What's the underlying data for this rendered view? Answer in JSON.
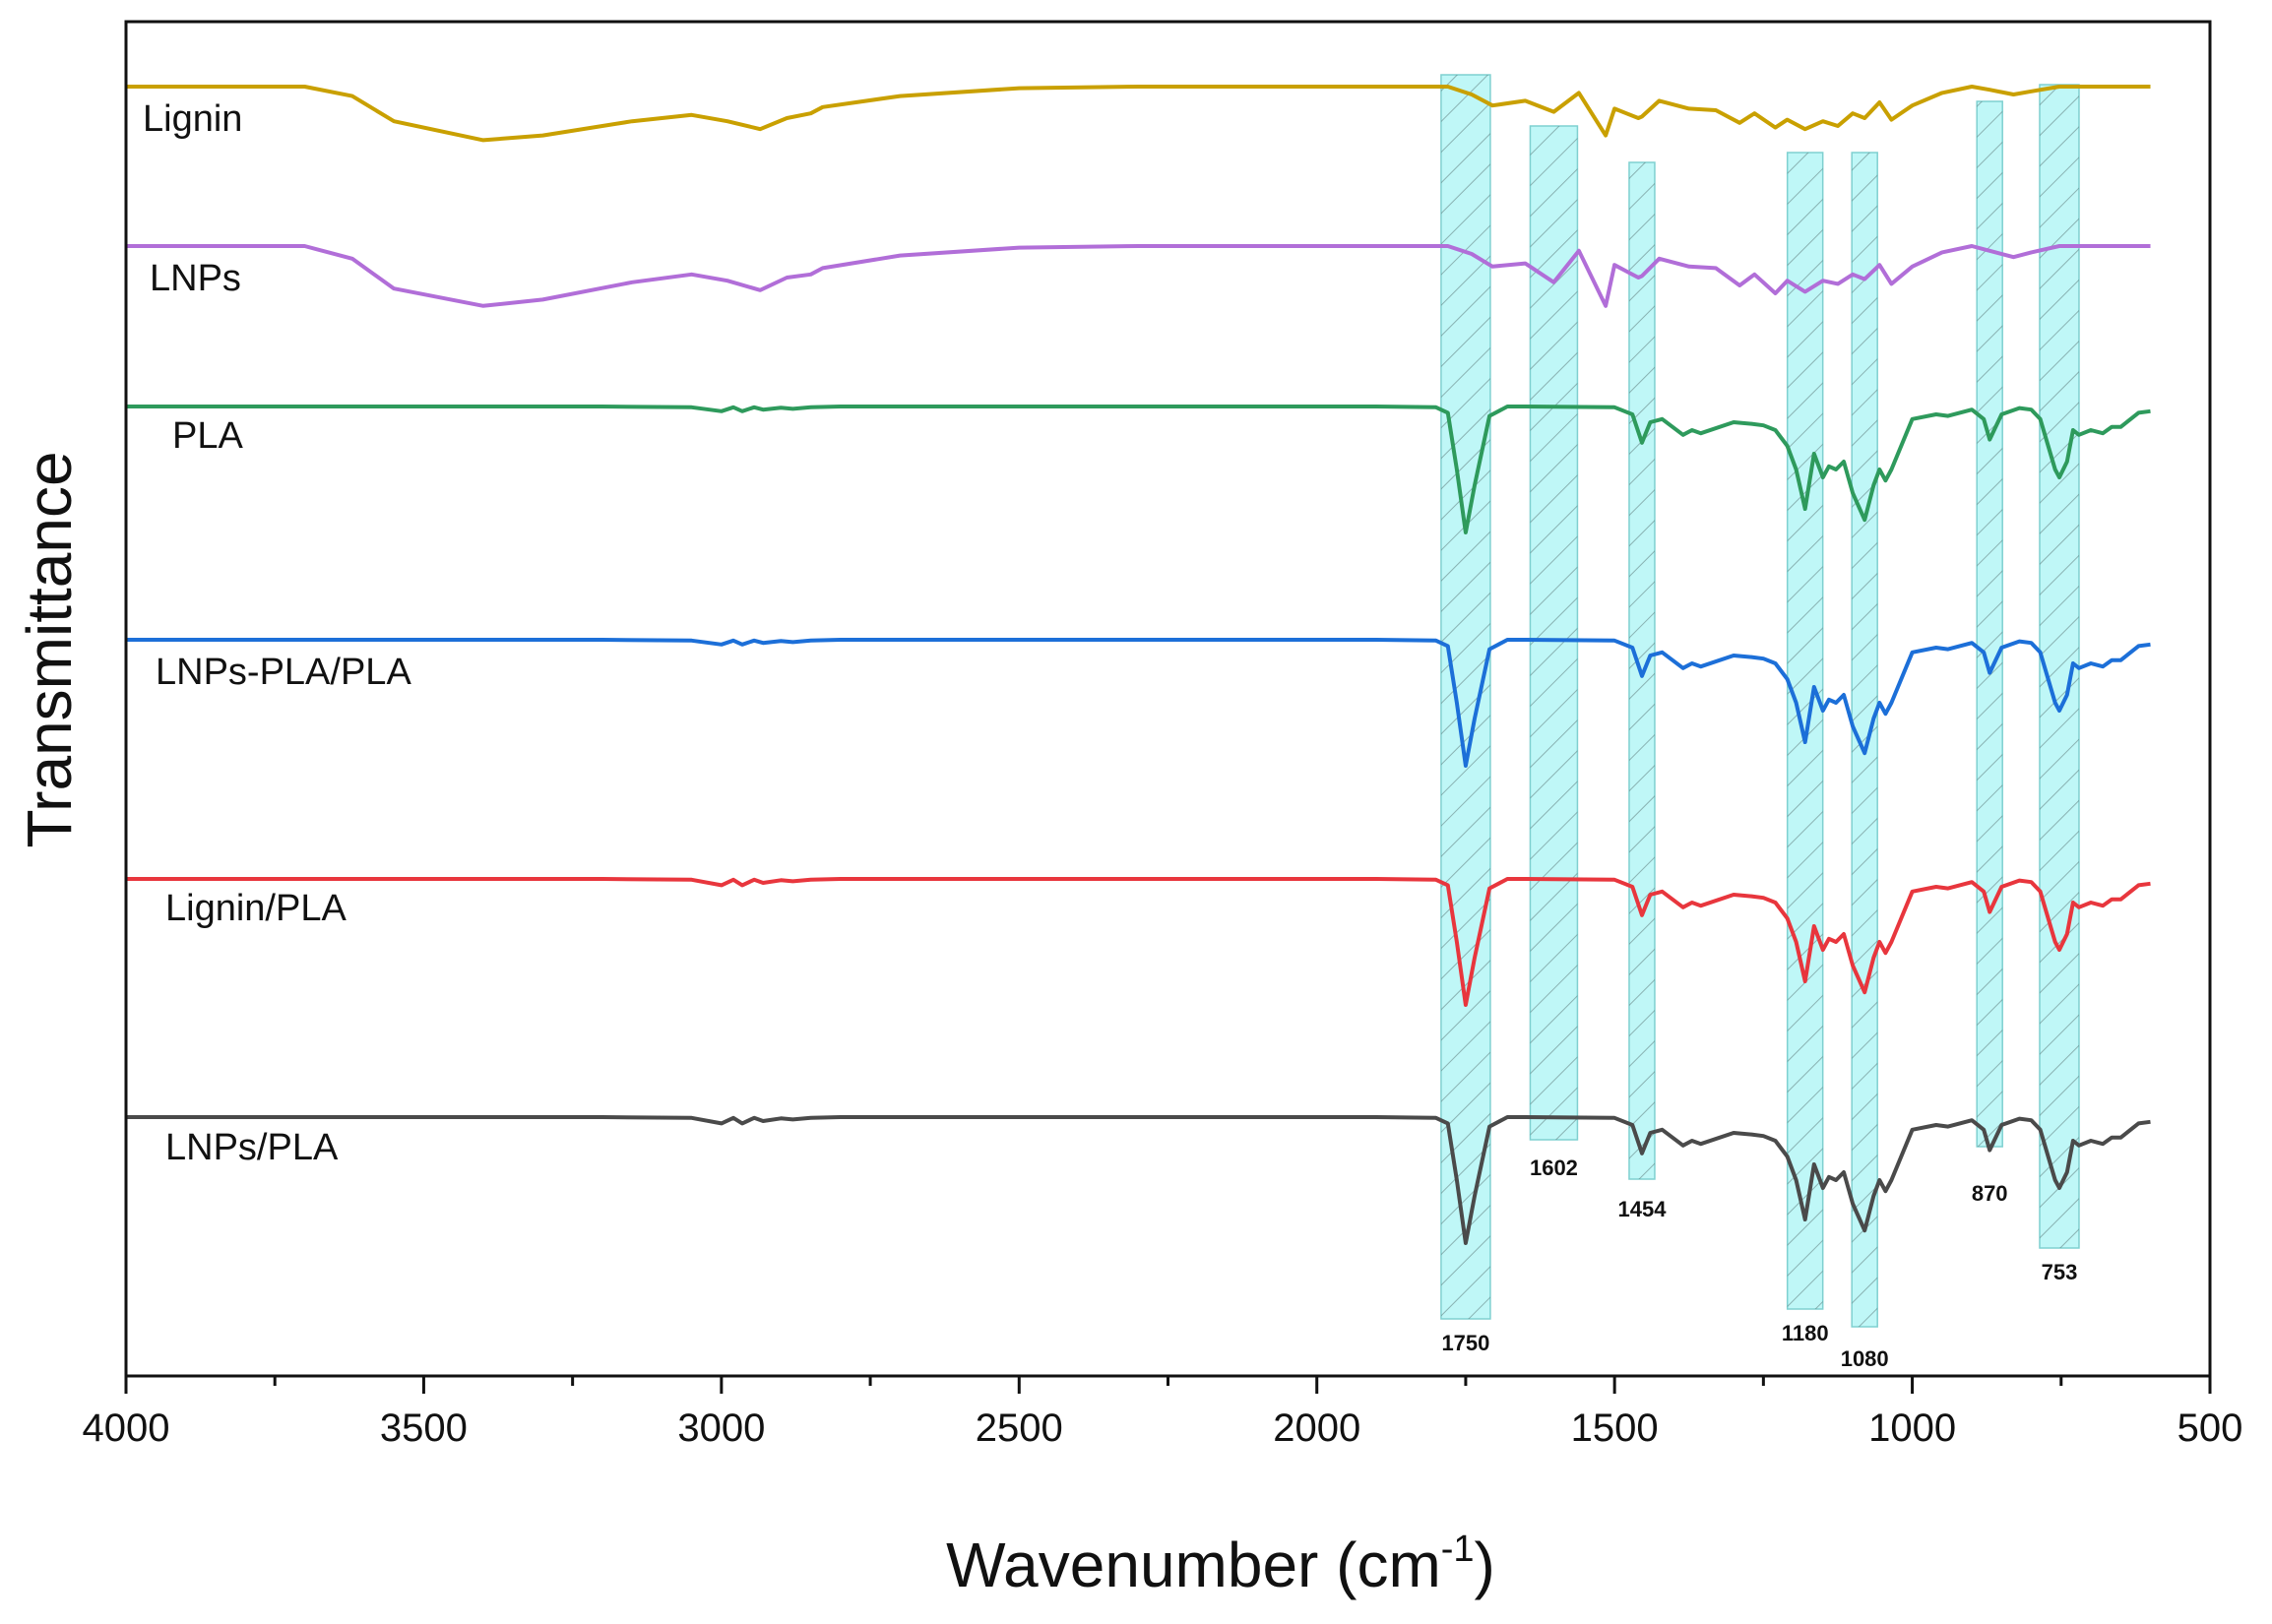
{
  "chart_data": {
    "type": "line",
    "title": "",
    "xlabel": "Wavenumber (cm",
    "xlabel_sup": "-1",
    "xlabel_close": ")",
    "ylabel": "Transmittance",
    "xlim": [
      4000,
      500
    ],
    "x_reversed": true,
    "x_ticks": [
      4000,
      3500,
      3000,
      2500,
      2000,
      1500,
      1000,
      500
    ],
    "y_ticks_labeled": false,
    "grid": false,
    "legend": "labels placed at left of each trace",
    "bands": [
      {
        "center": 1750,
        "label": "1750"
      },
      {
        "center": 1602,
        "label": "1602"
      },
      {
        "center": 1454,
        "label": "1454"
      },
      {
        "center": 1180,
        "label": "1180"
      },
      {
        "center": 1080,
        "label": "1080"
      },
      {
        "center": 870,
        "label": "870"
      },
      {
        "center": 753,
        "label": "753"
      }
    ],
    "band_color": "#bff7f7",
    "series": [
      {
        "name": "Lignin",
        "color": "#c9a000",
        "x": [
          4000,
          3700,
          3620,
          3550,
          3400,
          3300,
          3150,
          3050,
          2990,
          2935,
          2890,
          2850,
          2830,
          2700,
          2500,
          2300,
          2100,
          1850,
          1780,
          1740,
          1705,
          1650,
          1602,
          1560,
          1515,
          1500,
          1460,
          1454,
          1425,
          1375,
          1330,
          1290,
          1265,
          1230,
          1210,
          1180,
          1150,
          1125,
          1100,
          1080,
          1055,
          1035,
          1000,
          950,
          900,
          870,
          830,
          800,
          753,
          700,
          650,
          600
        ],
        "y": [
          100,
          100,
          94,
          78,
          66,
          69,
          78,
          82,
          78,
          73,
          80,
          83,
          87,
          94,
          99,
          100,
          100,
          100,
          100,
          95,
          88,
          91,
          84,
          96,
          69,
          86,
          80,
          81,
          91,
          86,
          85,
          77,
          83,
          74,
          79,
          73,
          78,
          75,
          83,
          80,
          90,
          79,
          88,
          96,
          100,
          98,
          95,
          97,
          100,
          100,
          100,
          100
        ]
      },
      {
        "name": "LNPs",
        "color": "#b16ed8",
        "x": [
          4000,
          3700,
          3620,
          3550,
          3400,
          3300,
          3150,
          3050,
          2990,
          2935,
          2890,
          2850,
          2830,
          2700,
          2500,
          2300,
          2100,
          1850,
          1780,
          1740,
          1705,
          1650,
          1602,
          1560,
          1515,
          1500,
          1460,
          1454,
          1425,
          1375,
          1330,
          1290,
          1265,
          1230,
          1210,
          1180,
          1150,
          1125,
          1100,
          1080,
          1055,
          1035,
          1000,
          950,
          900,
          870,
          830,
          800,
          753,
          700,
          650,
          600
        ],
        "y": [
          100,
          100,
          92,
          73,
          62,
          66,
          77,
          82,
          78,
          72,
          80,
          82,
          86,
          94,
          99,
          100,
          100,
          100,
          100,
          95,
          87,
          89,
          77,
          97,
          62,
          88,
          80,
          81,
          92,
          87,
          86,
          75,
          82,
          70,
          78,
          71,
          78,
          76,
          82,
          79,
          88,
          76,
          87,
          96,
          100,
          97,
          93,
          96,
          100,
          100,
          100,
          100
        ]
      },
      {
        "name": "PLA",
        "color": "#2e9a5c",
        "x": [
          4000,
          3200,
          3050,
          3000,
          2980,
          2965,
          2945,
          2930,
          2900,
          2880,
          2850,
          2800,
          2500,
          2200,
          1900,
          1800,
          1780,
          1765,
          1750,
          1735,
          1710,
          1680,
          1650,
          1500,
          1470,
          1454,
          1440,
          1420,
          1385,
          1370,
          1355,
          1300,
          1270,
          1250,
          1230,
          1210,
          1195,
          1180,
          1165,
          1150,
          1140,
          1128,
          1115,
          1100,
          1080,
          1065,
          1055,
          1045,
          1035,
          1000,
          960,
          940,
          900,
          880,
          870,
          850,
          820,
          800,
          785,
          760,
          753,
          740,
          730,
          720,
          700,
          680,
          665,
          650,
          620,
          600
        ],
        "y": [
          100,
          100,
          99.5,
          97,
          99.5,
          97,
          99.5,
          98,
          99.2,
          98.5,
          99.5,
          100,
          100,
          100,
          100,
          99.5,
          96,
          60,
          20,
          50,
          94,
          100,
          100,
          99.5,
          95,
          77,
          90,
          92,
          82,
          85,
          83,
          90,
          89,
          88,
          85,
          75,
          60,
          35,
          70,
          55,
          62,
          60,
          65,
          45,
          28,
          50,
          60,
          53,
          60,
          92,
          95,
          94,
          98,
          92,
          79,
          95,
          99,
          98,
          92,
          60,
          55,
          65,
          85,
          82,
          85,
          83,
          87,
          87,
          96,
          97
        ]
      },
      {
        "name": "LNPs-PLA/PLA",
        "color": "#1c6fd8",
        "x": [
          4000,
          3200,
          3050,
          3000,
          2980,
          2965,
          2945,
          2930,
          2900,
          2880,
          2850,
          2800,
          2500,
          2200,
          1900,
          1800,
          1780,
          1765,
          1750,
          1735,
          1710,
          1680,
          1650,
          1500,
          1470,
          1454,
          1440,
          1420,
          1385,
          1370,
          1355,
          1300,
          1270,
          1250,
          1230,
          1210,
          1195,
          1180,
          1165,
          1150,
          1140,
          1128,
          1115,
          1100,
          1080,
          1065,
          1055,
          1045,
          1035,
          1000,
          960,
          940,
          900,
          880,
          870,
          850,
          820,
          800,
          785,
          760,
          753,
          740,
          730,
          720,
          700,
          680,
          665,
          650,
          620,
          600
        ],
        "y": [
          100,
          100,
          99.5,
          97,
          99.5,
          97,
          99.5,
          98,
          99.2,
          98.5,
          99.5,
          100,
          100,
          100,
          100,
          99.5,
          96,
          60,
          20,
          50,
          94,
          100,
          100,
          99.5,
          95,
          77,
          90,
          92,
          82,
          85,
          83,
          90,
          89,
          88,
          85,
          75,
          60,
          35,
          70,
          55,
          62,
          60,
          65,
          45,
          28,
          50,
          60,
          53,
          60,
          92,
          95,
          94,
          98,
          92,
          79,
          95,
          99,
          98,
          92,
          60,
          55,
          65,
          85,
          82,
          85,
          83,
          87,
          87,
          96,
          97
        ]
      },
      {
        "name": "Lignin/PLA",
        "color": "#e8363d",
        "x": [
          4000,
          3200,
          3050,
          3000,
          2980,
          2965,
          2945,
          2930,
          2900,
          2880,
          2850,
          2800,
          2500,
          2200,
          1900,
          1800,
          1780,
          1765,
          1750,
          1735,
          1710,
          1680,
          1650,
          1500,
          1470,
          1454,
          1440,
          1420,
          1385,
          1370,
          1355,
          1300,
          1270,
          1250,
          1230,
          1210,
          1195,
          1180,
          1165,
          1150,
          1140,
          1128,
          1115,
          1100,
          1080,
          1065,
          1055,
          1045,
          1035,
          1000,
          960,
          940,
          900,
          880,
          870,
          850,
          820,
          800,
          785,
          760,
          753,
          740,
          730,
          720,
          700,
          680,
          665,
          650,
          620,
          600
        ],
        "y": [
          100,
          100,
          99.5,
          96,
          99.5,
          96,
          99.5,
          97.5,
          99.2,
          98.5,
          99.5,
          100,
          100,
          100,
          100,
          99.5,
          96,
          60,
          20,
          50,
          94,
          100,
          100,
          99.5,
          95,
          77,
          90,
          92,
          82,
          85,
          83,
          90,
          89,
          88,
          85,
          75,
          60,
          35,
          70,
          55,
          62,
          60,
          65,
          45,
          28,
          50,
          60,
          53,
          60,
          92,
          95,
          94,
          98,
          92,
          79,
          95,
          99,
          98,
          92,
          60,
          55,
          65,
          85,
          82,
          85,
          83,
          87,
          87,
          96,
          97
        ]
      },
      {
        "name": "LNPs/PLA",
        "color": "#4a4a4a",
        "x": [
          4000,
          3200,
          3050,
          3000,
          2980,
          2965,
          2945,
          2930,
          2900,
          2880,
          2850,
          2800,
          2500,
          2200,
          1900,
          1800,
          1780,
          1765,
          1750,
          1735,
          1710,
          1680,
          1650,
          1500,
          1470,
          1454,
          1440,
          1420,
          1385,
          1370,
          1355,
          1300,
          1270,
          1250,
          1230,
          1210,
          1195,
          1180,
          1165,
          1150,
          1140,
          1128,
          1115,
          1100,
          1080,
          1065,
          1055,
          1045,
          1035,
          1000,
          960,
          940,
          900,
          880,
          870,
          850,
          820,
          800,
          785,
          760,
          753,
          740,
          730,
          720,
          700,
          680,
          665,
          650,
          620,
          600
        ],
        "y": [
          100,
          100,
          99.5,
          96,
          99.5,
          96,
          99.5,
          97.5,
          99.2,
          98.5,
          99.5,
          100,
          100,
          100,
          100,
          99.5,
          96,
          60,
          20,
          50,
          94,
          100,
          100,
          99.5,
          95,
          77,
          90,
          92,
          82,
          85,
          83,
          90,
          89,
          88,
          85,
          75,
          60,
          35,
          70,
          55,
          62,
          60,
          65,
          45,
          28,
          50,
          60,
          53,
          60,
          92,
          95,
          94,
          98,
          92,
          79,
          95,
          99,
          98,
          92,
          60,
          55,
          65,
          85,
          82,
          85,
          83,
          87,
          87,
          96,
          97
        ]
      }
    ]
  }
}
